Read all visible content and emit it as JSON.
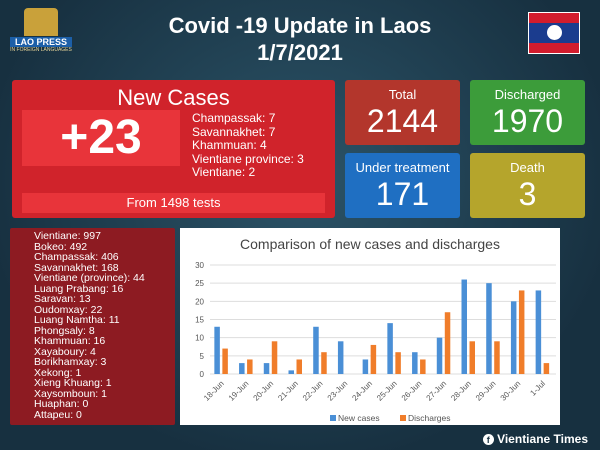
{
  "logo": {
    "text": "LAO PRESS",
    "subtext": "IN FOREIGN LANGUAGES"
  },
  "header": {
    "title": "Covid -19 Update in Laos",
    "date": "1/7/2021"
  },
  "new_cases": {
    "heading": "New Cases",
    "value": "+23",
    "breakdown": [
      "Champassak: 7",
      "Savannakhet: 7",
      "Khammuan: 4",
      "Vientiane province: 3",
      "Vientiane: 2"
    ],
    "tests": "From 1498 tests"
  },
  "stats": {
    "total": {
      "label": "Total",
      "value": "2144",
      "color": "#b3362c"
    },
    "discharged": {
      "label": "Discharged",
      "value": "1970",
      "color": "#3c9c3a"
    },
    "under_treatment": {
      "label": "Under treatment",
      "value": "171",
      "color": "#1f6fc2"
    },
    "death": {
      "label": "Death",
      "value": "3",
      "color": "#b5a52c"
    }
  },
  "provinces": [
    "Vientiane: 997",
    "Bokeo: 492",
    "Champassak: 406",
    "Savannakhet: 168",
    "Vientiane (province): 44",
    "Luang Prabang: 16",
    "Saravan: 13",
    "Oudomxay: 22",
    "Luang Namtha: 11",
    "Phongsaly: 8",
    "Khammuan: 16",
    "Xayaboury: 4",
    "Borikhamxay: 3",
    "Xekong: 1",
    "Xieng Khuang: 1",
    "Xaysomboun: 1",
    "Huaphan: 0",
    "Attapeu: 0"
  ],
  "chart_data": {
    "type": "bar",
    "title": "Comparison of new cases and discharges",
    "categories": [
      "18-Jun",
      "19-Jun",
      "20-Jun",
      "21-Jun",
      "22-Jun",
      "23-Jun",
      "24-Jun",
      "25-Jun",
      "26-Jun",
      "27-Jun",
      "28-Jun",
      "29-Jun",
      "30-Jun",
      "1-Jul"
    ],
    "series": [
      {
        "name": "New cases",
        "color": "#4a8fd6",
        "values": [
          13,
          3,
          3,
          1,
          13,
          9,
          4,
          14,
          6,
          10,
          26,
          25,
          20,
          23
        ]
      },
      {
        "name": "Discharges",
        "color": "#f07d2a",
        "values": [
          7,
          4,
          9,
          4,
          6,
          0,
          8,
          6,
          4,
          17,
          9,
          9,
          23,
          3
        ]
      }
    ],
    "ylim": [
      0,
      30
    ],
    "yticks": [
      0,
      5,
      10,
      15,
      20,
      25,
      30
    ],
    "grid": true,
    "legend": "bottom"
  },
  "footer": {
    "source": "Vientiane Times",
    "icon": "facebook-icon"
  }
}
